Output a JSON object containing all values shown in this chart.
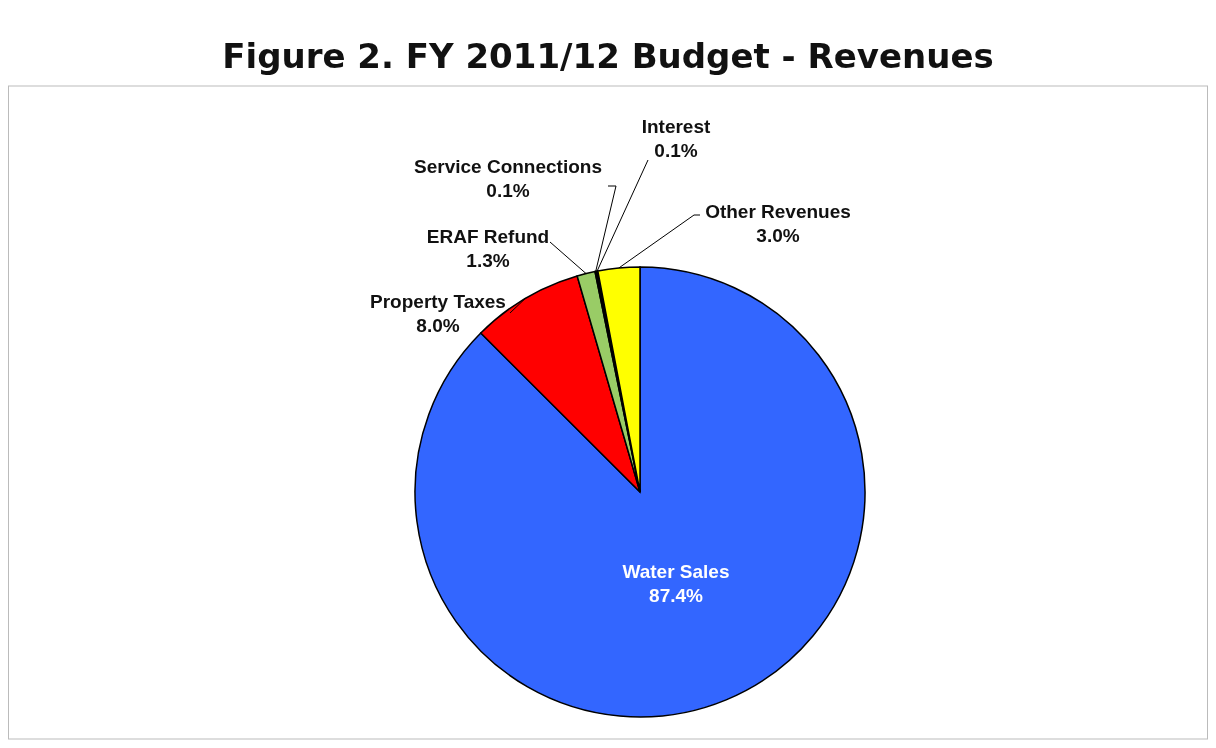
{
  "chart_data": {
    "type": "pie",
    "title": "Figure 2. FY 2011/12 Budget - Revenues",
    "categories": [
      "Water Sales",
      "Property Taxes",
      "ERAF Refund",
      "Service Connections",
      "Interest",
      "Other Revenues"
    ],
    "values": [
      87.4,
      8.0,
      1.3,
      0.1,
      0.1,
      3.0
    ],
    "value_labels": [
      "87.4%",
      "8.0%",
      "1.3%",
      "0.1%",
      "0.1%",
      "3.0%"
    ],
    "colors": [
      "#3366ff",
      "#ff0000",
      "#99cc66",
      "#000000",
      "#1a1a1a",
      "#ffff00"
    ]
  }
}
